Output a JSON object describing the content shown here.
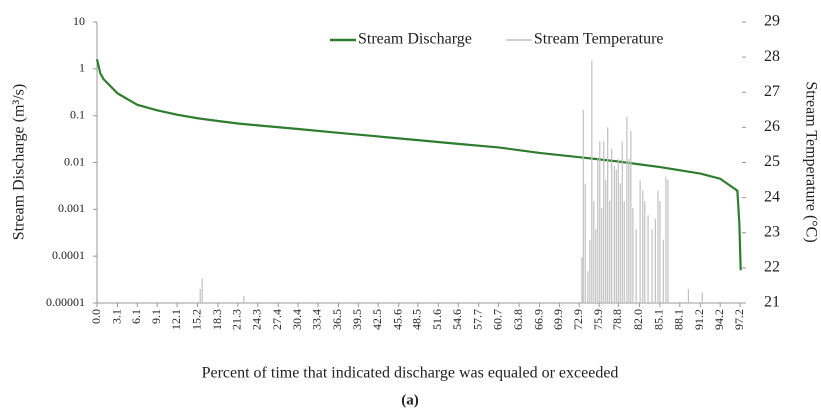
{
  "chart_data": {
    "type": "line",
    "x_label": "Percent of time that indicated discharge was equaled or exceeded",
    "y_label": "Stream Discharge (m³/s)",
    "y2_label": "Stream Temperature (°C)",
    "caption": "(a)",
    "legend": "upper right",
    "ylog": true,
    "xlim": [
      0,
      97.5
    ],
    "ylim": [
      1e-05,
      10
    ],
    "y2lim": [
      21,
      29
    ],
    "yticks": [
      10,
      1,
      0.1,
      0.01,
      0.001,
      0.0001,
      1e-05
    ],
    "y2ticks": [
      21,
      22,
      23,
      24,
      25,
      26,
      27,
      28,
      29
    ],
    "xticks": [
      {
        "value": 0,
        "label": "0.0"
      },
      3.1,
      6.1,
      9.1,
      12.1,
      15.2,
      18.3,
      21.3,
      24.3,
      27.4,
      30.4,
      33.4,
      36.5,
      39.5,
      42.5,
      45.6,
      48.5,
      51.6,
      54.6,
      57.7,
      60.7,
      63.8,
      66.9,
      69.9,
      72.9,
      75.9,
      78.8,
      {
        "value": 82,
        "label": "82.0"
      },
      85.1,
      88.1,
      91.2,
      94.2,
      97.2
    ],
    "series": [
      {
        "name": "Stream Discharge",
        "color": "#2e7d2e",
        "kind": "line",
        "axis": "y",
        "x": [
          0,
          0.5,
          1,
          3.1,
          6.1,
          9.1,
          12.1,
          15.2,
          18.3,
          21.3,
          24.3,
          30.4,
          36.5,
          42.5,
          48.5,
          54.6,
          60.7,
          66.9,
          72.9,
          78.8,
          85.1,
          91.2,
          94.2,
          96.0,
          96.8,
          97.1,
          97.3
        ],
        "values": [
          1.6,
          0.8,
          0.6,
          0.3,
          0.17,
          0.13,
          0.105,
          0.088,
          0.077,
          0.068,
          0.062,
          0.052,
          0.043,
          0.036,
          0.03,
          0.025,
          0.021,
          0.016,
          0.013,
          0.0105,
          0.008,
          0.0058,
          0.0045,
          0.003,
          0.0025,
          0.0005,
          5e-05
        ]
      },
      {
        "name": "Stream Temperature",
        "color": "#c0c0c0",
        "kind": "spike",
        "axis": "y2",
        "x": [
          15.6,
          15.9,
          22.2,
          73.3,
          73.5,
          73.8,
          74.2,
          74.5,
          74.8,
          75.1,
          75.4,
          75.7,
          76.0,
          76.3,
          76.6,
          76.9,
          77.2,
          77.5,
          77.8,
          78.2,
          78.5,
          78.8,
          79.1,
          79.4,
          79.7,
          80.1,
          80.4,
          80.7,
          81.0,
          81.5,
          82.1,
          82.5,
          82.8,
          83.3,
          83.9,
          84.4,
          84.8,
          85.1,
          85.6,
          86.0,
          86.3,
          89.4,
          91.5
        ],
        "values": [
          21.4,
          21.7,
          21.2,
          22.3,
          26.5,
          24.4,
          21.9,
          22.8,
          27.9,
          23.9,
          23.1,
          25.1,
          25.6,
          23.7,
          25.6,
          24.5,
          26.0,
          23.9,
          25.4,
          24.9,
          24.8,
          25.1,
          24.4,
          25.6,
          23.9,
          26.3,
          25.1,
          25.9,
          23.7,
          23.1,
          24.5,
          24.2,
          23.9,
          23.5,
          23.1,
          23.4,
          24.2,
          23.9,
          22.8,
          24.6,
          24.5,
          21.4,
          21.3
        ]
      }
    ]
  }
}
